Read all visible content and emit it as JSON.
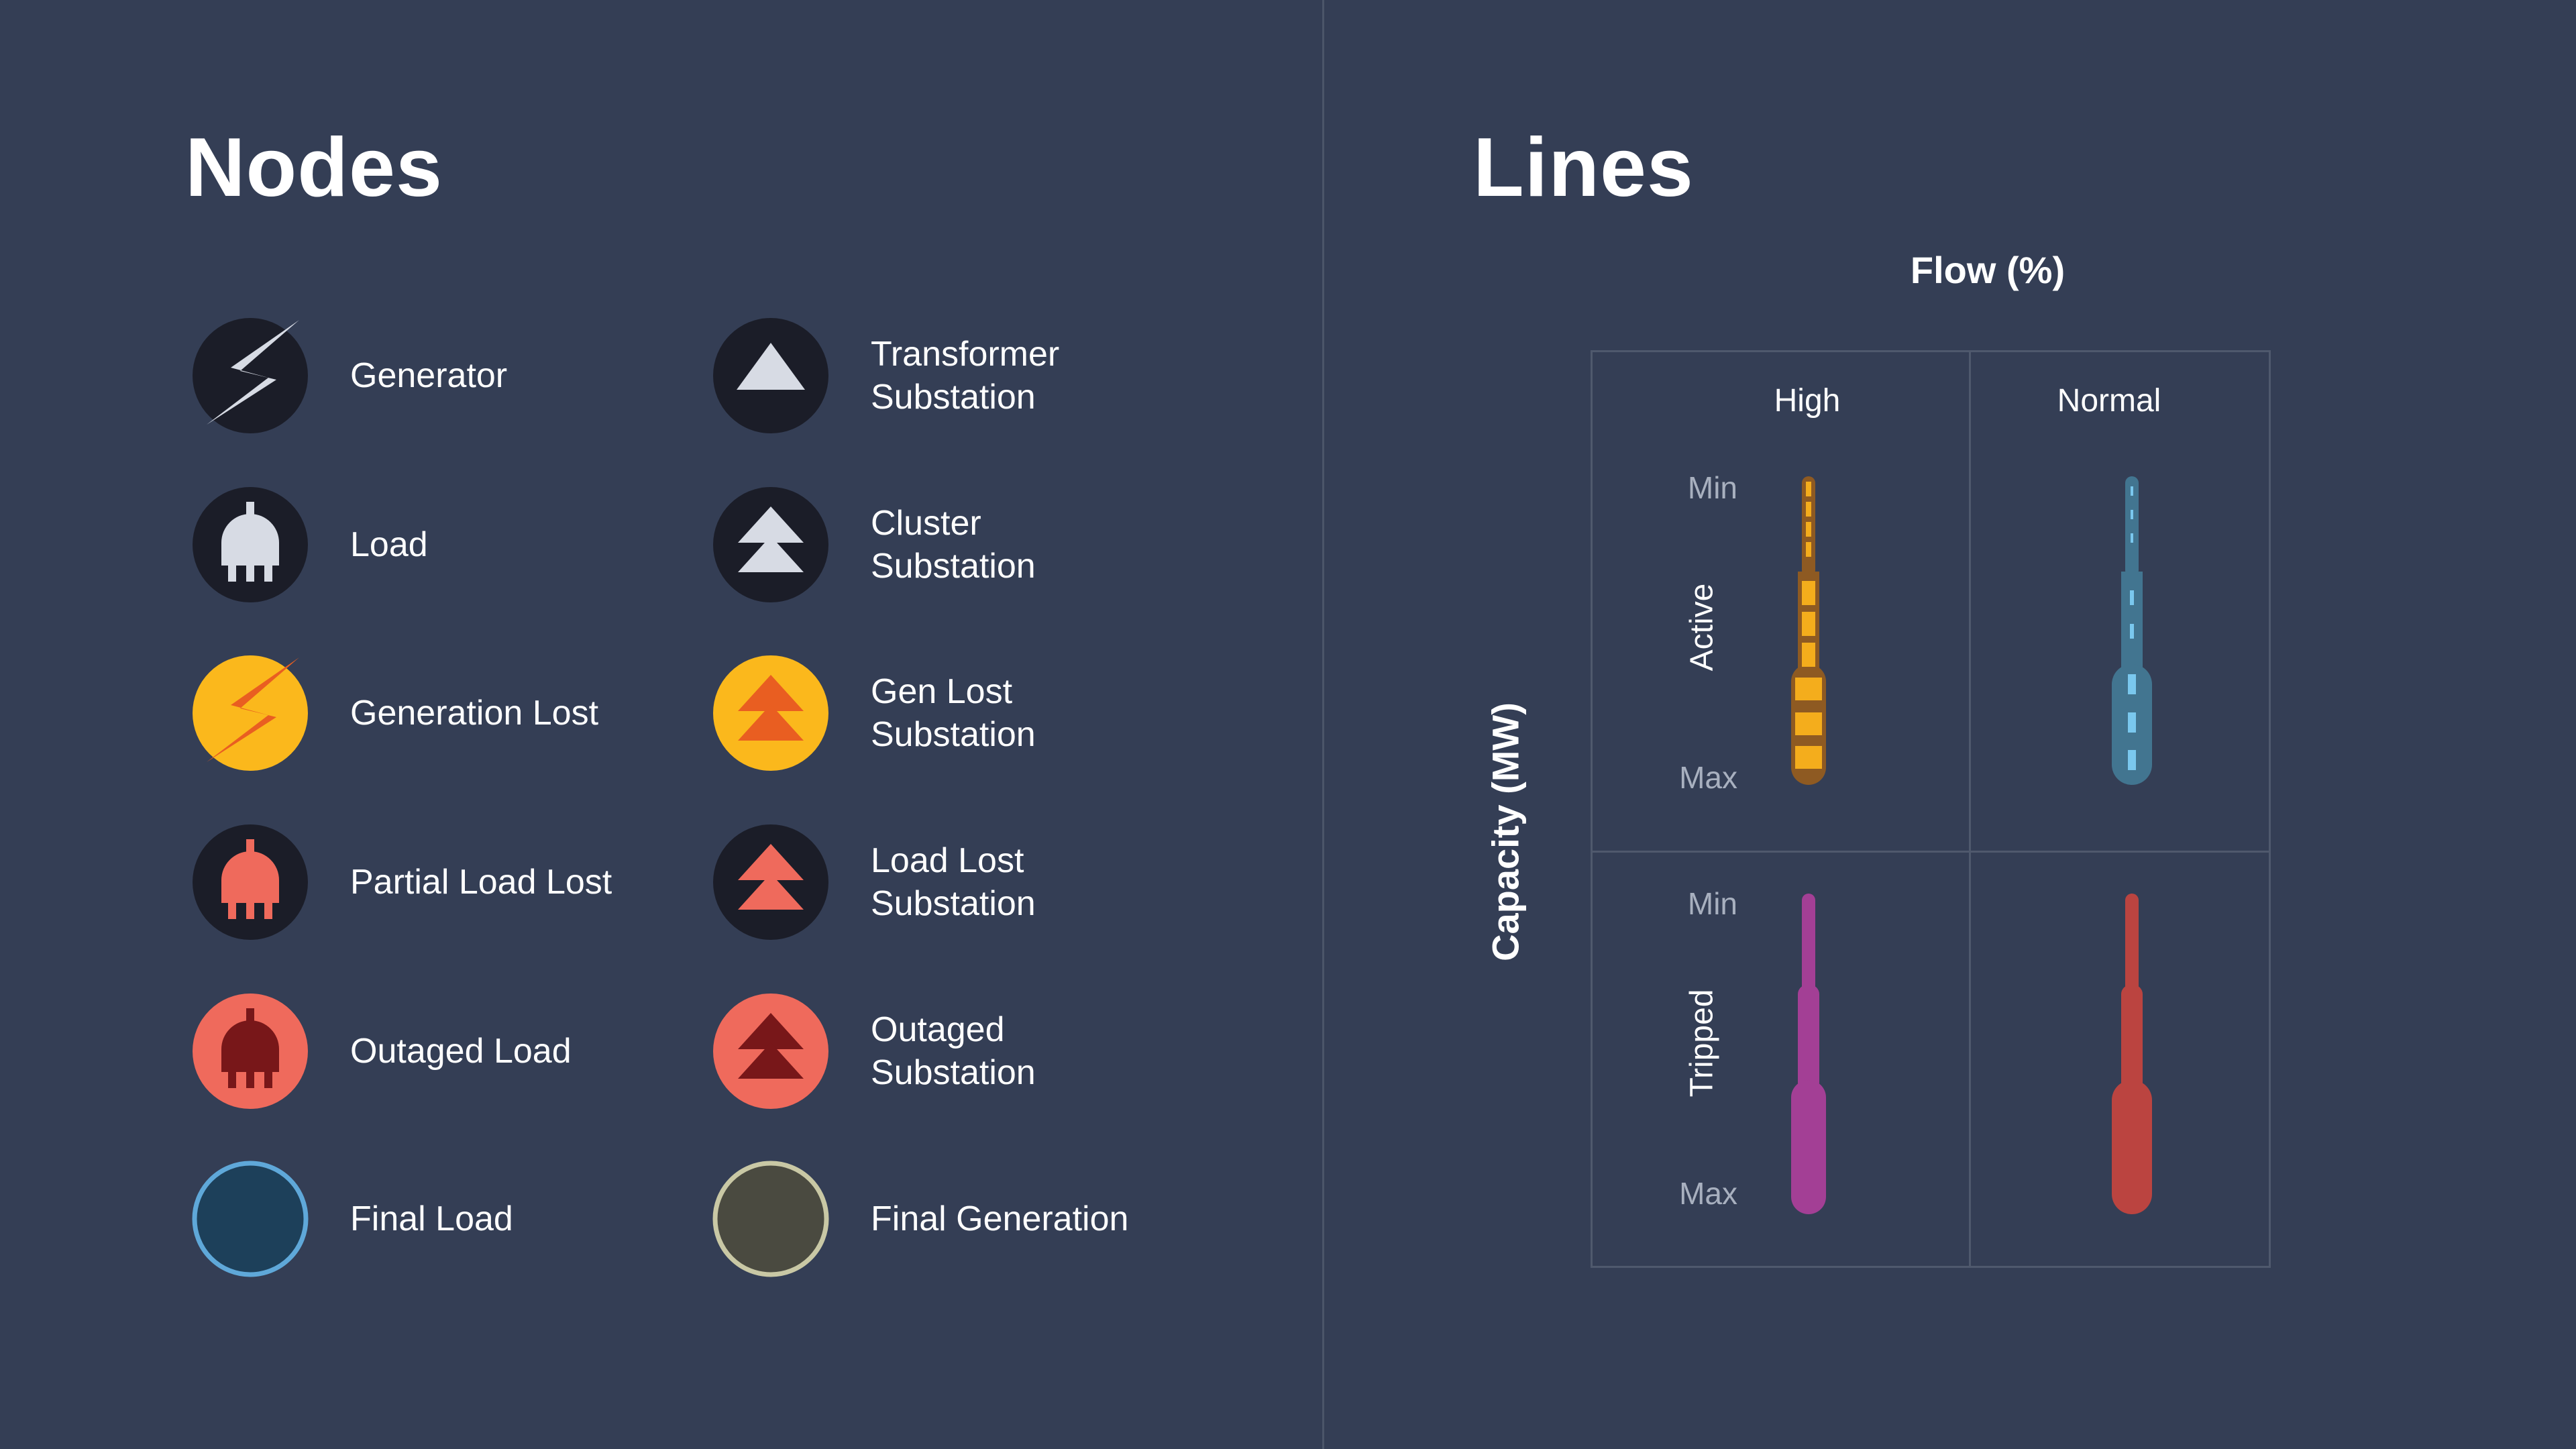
{
  "nodes_panel": {
    "title": "Nodes",
    "items": [
      {
        "label": "Generator",
        "icon": "lightning-bolt-icon"
      },
      {
        "label": "Transformer Substation",
        "icon": "single-triangle-icon"
      },
      {
        "label": "Load",
        "icon": "plug-icon"
      },
      {
        "label": "Cluster Substation",
        "icon": "double-triangle-icon"
      },
      {
        "label": "Generation Lost",
        "icon": "lightning-bolt-icon"
      },
      {
        "label": "Gen Lost Substation",
        "icon": "double-triangle-icon"
      },
      {
        "label": "Partial Load Lost",
        "icon": "plug-icon"
      },
      {
        "label": "Load Lost Substation",
        "icon": "double-triangle-icon"
      },
      {
        "label": "Outaged Load",
        "icon": "plug-icon"
      },
      {
        "label": "Outaged Substation",
        "icon": "double-triangle-icon"
      },
      {
        "label": "Final Load",
        "icon": "ring-circle-icon"
      },
      {
        "label": "Final Generation",
        "icon": "ring-circle-icon"
      }
    ]
  },
  "lines_panel": {
    "title": "Lines",
    "flow_axis_title": "Flow (%)",
    "capacity_axis_title": "Capacity (MW)",
    "columns": [
      "High",
      "Normal"
    ],
    "rows": [
      "Active",
      "Tripped"
    ],
    "scale_min": "Min",
    "scale_max": "Max"
  },
  "colors": {
    "background": "#343e55",
    "dark_node": "#1b1d28",
    "icon_light": "#d7dbe4",
    "gen_lost_yellow": "#fbb81c",
    "gen_lost_orange": "#e95e21",
    "load_lost_salmon": "#ef6a5c",
    "outaged_darkred": "#781719",
    "final_load_fill": "#1d405a",
    "final_load_ring": "#5fa8d9",
    "final_gen_fill": "#4a4a40",
    "final_gen_ring": "#c9c8a5",
    "high_active": "#f4ad1c",
    "high_active_base": "#8e5a22",
    "normal_active": "#427590",
    "normal_active_dash": "#7ac8ee",
    "high_tripped": "#a33f95",
    "normal_tripped": "#bb4440"
  }
}
